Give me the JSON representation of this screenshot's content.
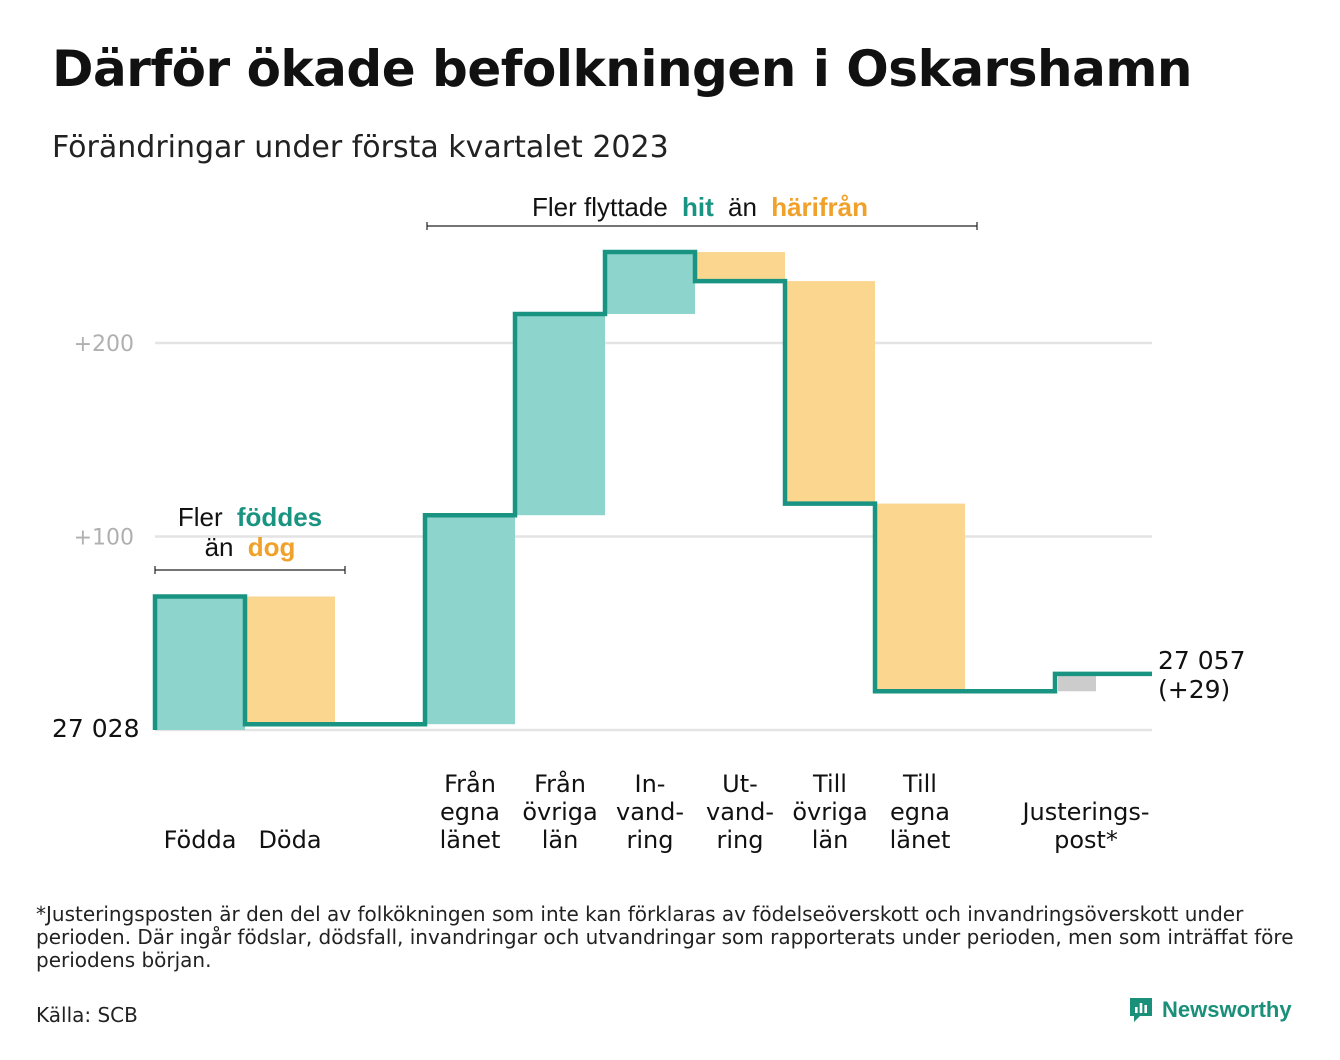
{
  "title": "Därför ökade befolkningen i Oskarshamn",
  "subtitle": "Förändringar under första kvartalet 2023",
  "colors": {
    "increase": "#8dd5cc",
    "decrease": "#fad68f",
    "adjustment": "#cccccc",
    "step_line": "#1a9482",
    "teal_text": "#1a9482",
    "orange_text": "#f0a12a",
    "grid": "#e4e4e4",
    "tick_label": "#b0b0b0"
  },
  "annotations": {
    "births": {
      "prefix": "Fler",
      "hi1": "föddes",
      "mid": "än",
      "hi2": "dog"
    },
    "migration": {
      "prefix": "Fler flyttade",
      "hi1": "hit",
      "mid": "än",
      "hi2": "härifrån"
    }
  },
  "chart_data": {
    "type": "waterfall",
    "start_label": "27 028",
    "start_value": 0,
    "end_label_line1": "27 057",
    "end_label_line2": "(+29)",
    "y_ticks": [
      {
        "value": 100,
        "label": "+100"
      },
      {
        "value": 200,
        "label": "+200"
      }
    ],
    "ylim": [
      0,
      245
    ],
    "grid": true,
    "bars": [
      {
        "lines": [
          "Födda"
        ],
        "value": 69,
        "start": 0
      },
      {
        "lines": [
          "Döda"
        ],
        "value": -66,
        "start": 69
      },
      {
        "lines": [
          "Från",
          "egna",
          "länet"
        ],
        "value": 108,
        "start": 3
      },
      {
        "lines": [
          "Från",
          "övriga",
          "län"
        ],
        "value": 104,
        "start": 111
      },
      {
        "lines": [
          "In-",
          "vand-",
          "ring"
        ],
        "value": 32,
        "start": 215
      },
      {
        "lines": [
          "Ut-",
          "vand-",
          "ring"
        ],
        "value": -15,
        "start": 247
      },
      {
        "lines": [
          "Till",
          "övriga",
          "län"
        ],
        "value": -115,
        "start": 232
      },
      {
        "lines": [
          "Till",
          "egna",
          "länet"
        ],
        "value": -97,
        "start": 117
      },
      {
        "lines": [
          "Justerings-",
          "post*"
        ],
        "value": 9,
        "start": 20
      }
    ],
    "end_value": 29
  },
  "footnote": "*Justeringsposten är den del av folkökningen som inte kan förklaras av födelseöverskott och invandringsöverskott under perioden. Där ingår födslar, dödsfall, invandringar och utvandringar som rapporterats under perioden, men som inträffat före periodens början.",
  "source": "Källa: SCB",
  "brand": {
    "name": "Newsworthy",
    "icon": "newsworthy-logo-icon"
  }
}
